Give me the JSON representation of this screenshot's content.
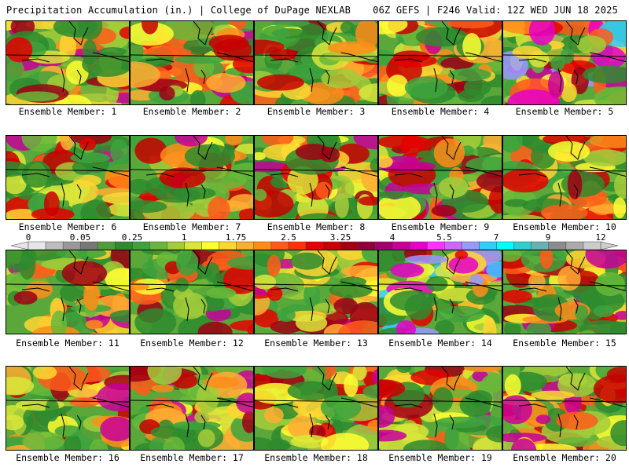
{
  "header": {
    "left": "Precipitation Accumulation (in.) | College of DuPage NEXLAB",
    "right": "06Z GEFS | F246 Valid: 12Z WED JUN 18 2025"
  },
  "member_label": "Ensemble Member:",
  "members": [
    1,
    2,
    3,
    4,
    5,
    6,
    7,
    8,
    9,
    10,
    11,
    12,
    13,
    14,
    15,
    16,
    17,
    18,
    19,
    20
  ],
  "colorbar": {
    "ticks": [
      "0",
      "0.05",
      "0.25",
      "1",
      "1.75",
      "2.5",
      "3.25",
      "4",
      "5.5",
      "7",
      "9",
      "12"
    ],
    "colors": [
      "#e6e6e6",
      "#bdbdbd",
      "#999999",
      "#787878",
      "#4f9c3a",
      "#2e8b2e",
      "#3da33d",
      "#67b83a",
      "#a3cc3a",
      "#d9e63a",
      "#ffff33",
      "#ffd633",
      "#ffad33",
      "#ff8c1a",
      "#ff5c1a",
      "#ff3300",
      "#e60000",
      "#c80000",
      "#a00014",
      "#8c003c",
      "#a0006e",
      "#c8009a",
      "#e600c8",
      "#ff33ff",
      "#cc66ff",
      "#9999ff",
      "#33ccff",
      "#00ffff",
      "#33cccc",
      "#66b3b3",
      "#8c8c8c",
      "#aaaaaa",
      "#cccccc"
    ]
  }
}
